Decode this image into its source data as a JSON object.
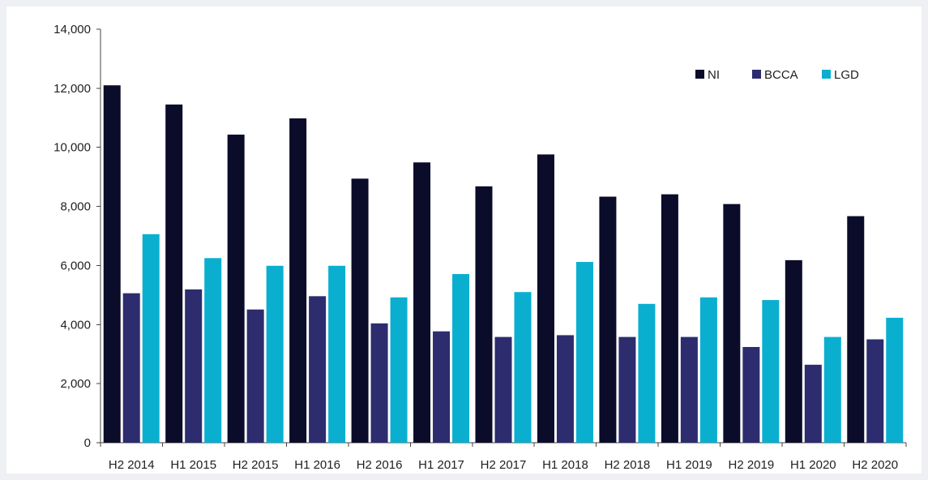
{
  "colors": {
    "background": "#eef0f3",
    "plot_area": "#ffffff"
  },
  "chart_data": {
    "type": "bar",
    "title": "",
    "xlabel": "",
    "ylabel": "",
    "ylim": [
      0,
      14000
    ],
    "yticks": [
      "0",
      "2,000",
      "4,000",
      "6,000",
      "8,000",
      "10,000",
      "12,000",
      "14,000"
    ],
    "categories": [
      "H2 2014",
      "H1 2015",
      "H2 2015",
      "H1 2016",
      "H2 2016",
      "H1 2017",
      "H2 2017",
      "H1 2018",
      "H2 2018",
      "H1 2019",
      "H2 2019",
      "H1 2020",
      "H2 2020"
    ],
    "series": [
      {
        "name": "NI",
        "color": "#0b0b2a",
        "values": [
          12100,
          11450,
          10430,
          10980,
          8940,
          9490,
          8680,
          9760,
          8330,
          8410,
          8080,
          6180,
          7670
        ]
      },
      {
        "name": "BCCA",
        "color": "#2c2c6e",
        "values": [
          5060,
          5190,
          4510,
          4960,
          4040,
          3770,
          3580,
          3640,
          3580,
          3580,
          3240,
          2640,
          3500
        ]
      },
      {
        "name": "LGD",
        "color": "#0aafd0",
        "values": [
          7060,
          6250,
          5990,
          5990,
          4920,
          5710,
          5100,
          6120,
          4700,
          4920,
          4830,
          3580,
          4230
        ]
      }
    ],
    "grid": false,
    "legend_position": "top-right"
  }
}
